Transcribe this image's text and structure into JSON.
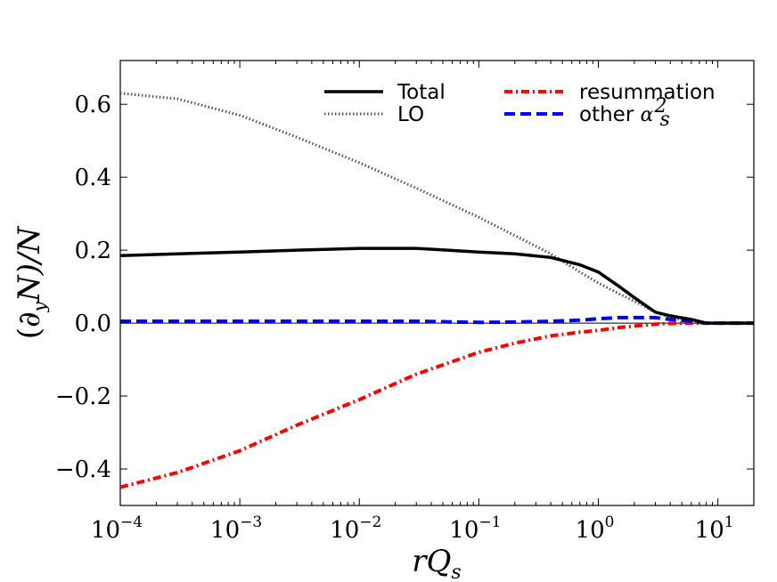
{
  "chart_data": {
    "type": "line",
    "title": "",
    "xlabel": "rQ_s",
    "ylabel": "(∂_y N)/N",
    "xscale": "log",
    "xlim": [
      0.0001,
      20
    ],
    "ylim": [
      -0.5,
      0.72
    ],
    "grid": false,
    "legend_position": "top-right",
    "x_ticks": [
      {
        "base": "10",
        "exp": "−4",
        "value": 0.0001
      },
      {
        "base": "10",
        "exp": "−3",
        "value": 0.001
      },
      {
        "base": "10",
        "exp": "−2",
        "value": 0.01
      },
      {
        "base": "10",
        "exp": "−1",
        "value": 0.1
      },
      {
        "base": "10",
        "exp": "0",
        "value": 1
      },
      {
        "base": "10",
        "exp": "1",
        "value": 10
      }
    ],
    "y_ticks": [
      {
        "label": "0.6",
        "value": 0.6
      },
      {
        "label": "0.4",
        "value": 0.4
      },
      {
        "label": "0.2",
        "value": 0.2
      },
      {
        "label": "0.0",
        "value": 0.0
      },
      {
        "label": "−0.2",
        "value": -0.2
      },
      {
        "label": "−0.4",
        "value": -0.4
      }
    ],
    "zero_line": 0,
    "x": [
      0.0001,
      0.0003,
      0.001,
      0.003,
      0.01,
      0.03,
      0.1,
      0.2,
      0.4,
      0.7,
      1.0,
      1.5,
      2.0,
      3.0,
      4.0,
      6.0,
      8.0,
      10.0,
      14.0,
      20.0
    ],
    "series": [
      {
        "name": "Total",
        "color": "#000000",
        "style": "solid",
        "values": [
          0.185,
          0.19,
          0.195,
          0.2,
          0.205,
          0.205,
          0.195,
          0.19,
          0.18,
          0.16,
          0.14,
          0.1,
          0.07,
          0.03,
          0.02,
          0.01,
          0.0,
          0.0,
          0.0,
          0.0
        ]
      },
      {
        "name": "LO",
        "color": "#555555",
        "style": "dotted",
        "values": [
          0.63,
          0.615,
          0.57,
          0.51,
          0.44,
          0.37,
          0.29,
          0.24,
          0.19,
          0.14,
          0.11,
          0.08,
          0.06,
          0.03,
          0.015,
          0.005,
          0.0,
          0.0,
          0.0,
          0.0
        ]
      },
      {
        "name": "resummation",
        "color": "#ff0000",
        "style": "dashdot",
        "values": [
          -0.45,
          -0.41,
          -0.35,
          -0.28,
          -0.21,
          -0.14,
          -0.08,
          -0.055,
          -0.035,
          -0.025,
          -0.02,
          -0.012,
          -0.008,
          -0.003,
          -0.001,
          0.0,
          0.0,
          0.0,
          0.0,
          0.0
        ]
      },
      {
        "name": "other α_s^2",
        "color": "#0000ff",
        "style": "dashed",
        "values": [
          0.005,
          0.005,
          0.005,
          0.005,
          0.005,
          0.005,
          0.002,
          0.003,
          0.005,
          0.008,
          0.012,
          0.015,
          0.015,
          0.015,
          0.01,
          0.005,
          0.0,
          0.0,
          0.0,
          0.0
        ]
      }
    ],
    "legend": {
      "total": "Total",
      "lo": "LO",
      "resummation": "resummation",
      "other_prefix": "other ",
      "other_symbol": "α",
      "other_sub": "s",
      "other_sup": "2"
    },
    "axis_text": {
      "x_r": "r",
      "x_Q": "Q",
      "x_sub": "s",
      "y_open": "(∂",
      "y_sub": "y",
      "y_mid": "N)/N"
    }
  }
}
